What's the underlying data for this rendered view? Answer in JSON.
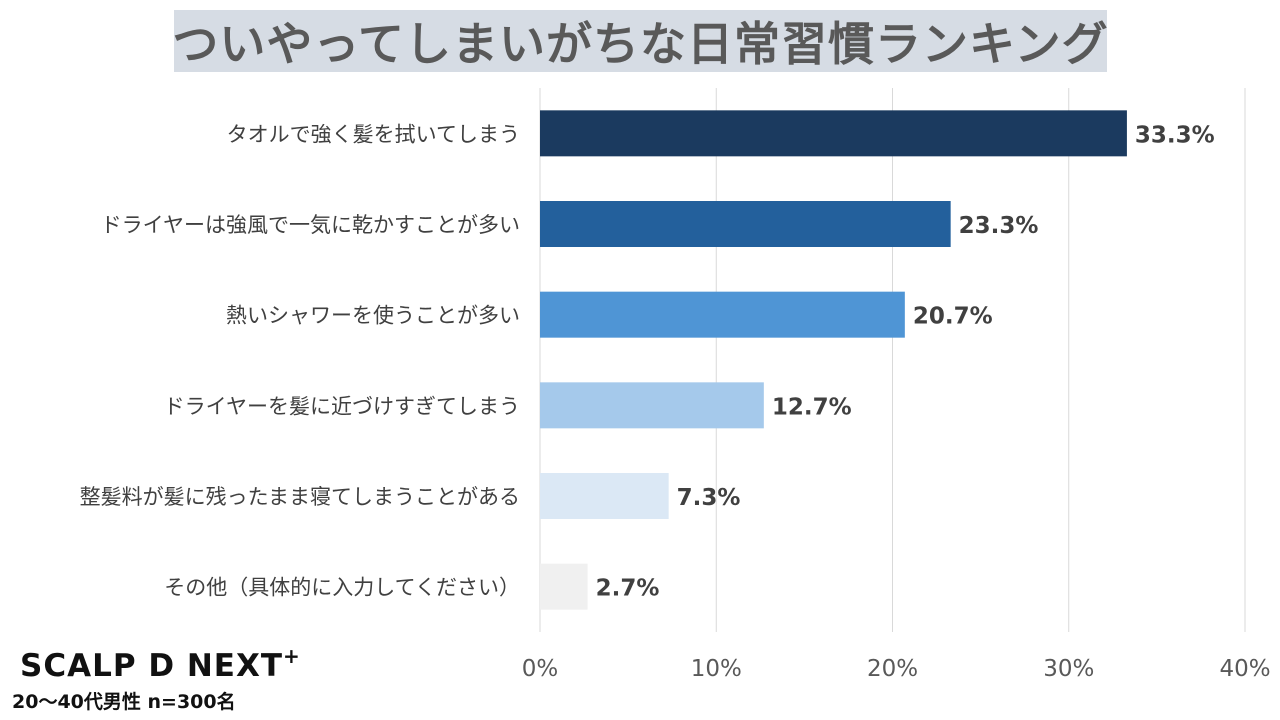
{
  "brand": {
    "logo_text": "SCALP D NEXT",
    "logo_plus": "+"
  },
  "note": "20～40代男性 n=300名",
  "chart_data": {
    "type": "bar",
    "orientation": "horizontal",
    "title": "ついやってしまいがちな日常習慣ランキング",
    "categories": [
      "タオルで強く髪を拭いてしまう",
      "ドライヤーは強風で一気に乾かすことが多い",
      "熱いシャワーを使うことが多い",
      "ドライヤーを髪に近づけすぎてしまう",
      "整髪料が髪に残ったまま寝てしまうことがある",
      "その他（具体的に入力してください）"
    ],
    "values": [
      33.3,
      23.3,
      20.7,
      12.7,
      7.3,
      2.7
    ],
    "value_labels": [
      "33.3%",
      "23.3%",
      "20.7%",
      "12.7%",
      "7.3%",
      "2.7%"
    ],
    "bar_colors": [
      "#1b3a5f",
      "#23609c",
      "#4f95d5",
      "#a5c9eb",
      "#dbe8f5",
      "#f0f0f0"
    ],
    "xlim": [
      0,
      40
    ],
    "xticks": [
      0,
      10,
      20,
      30,
      40
    ],
    "xtick_labels": [
      "0%",
      "10%",
      "20%",
      "30%",
      "40%"
    ],
    "xlabel": "",
    "ylabel": "",
    "grid": true,
    "legend": "none"
  }
}
